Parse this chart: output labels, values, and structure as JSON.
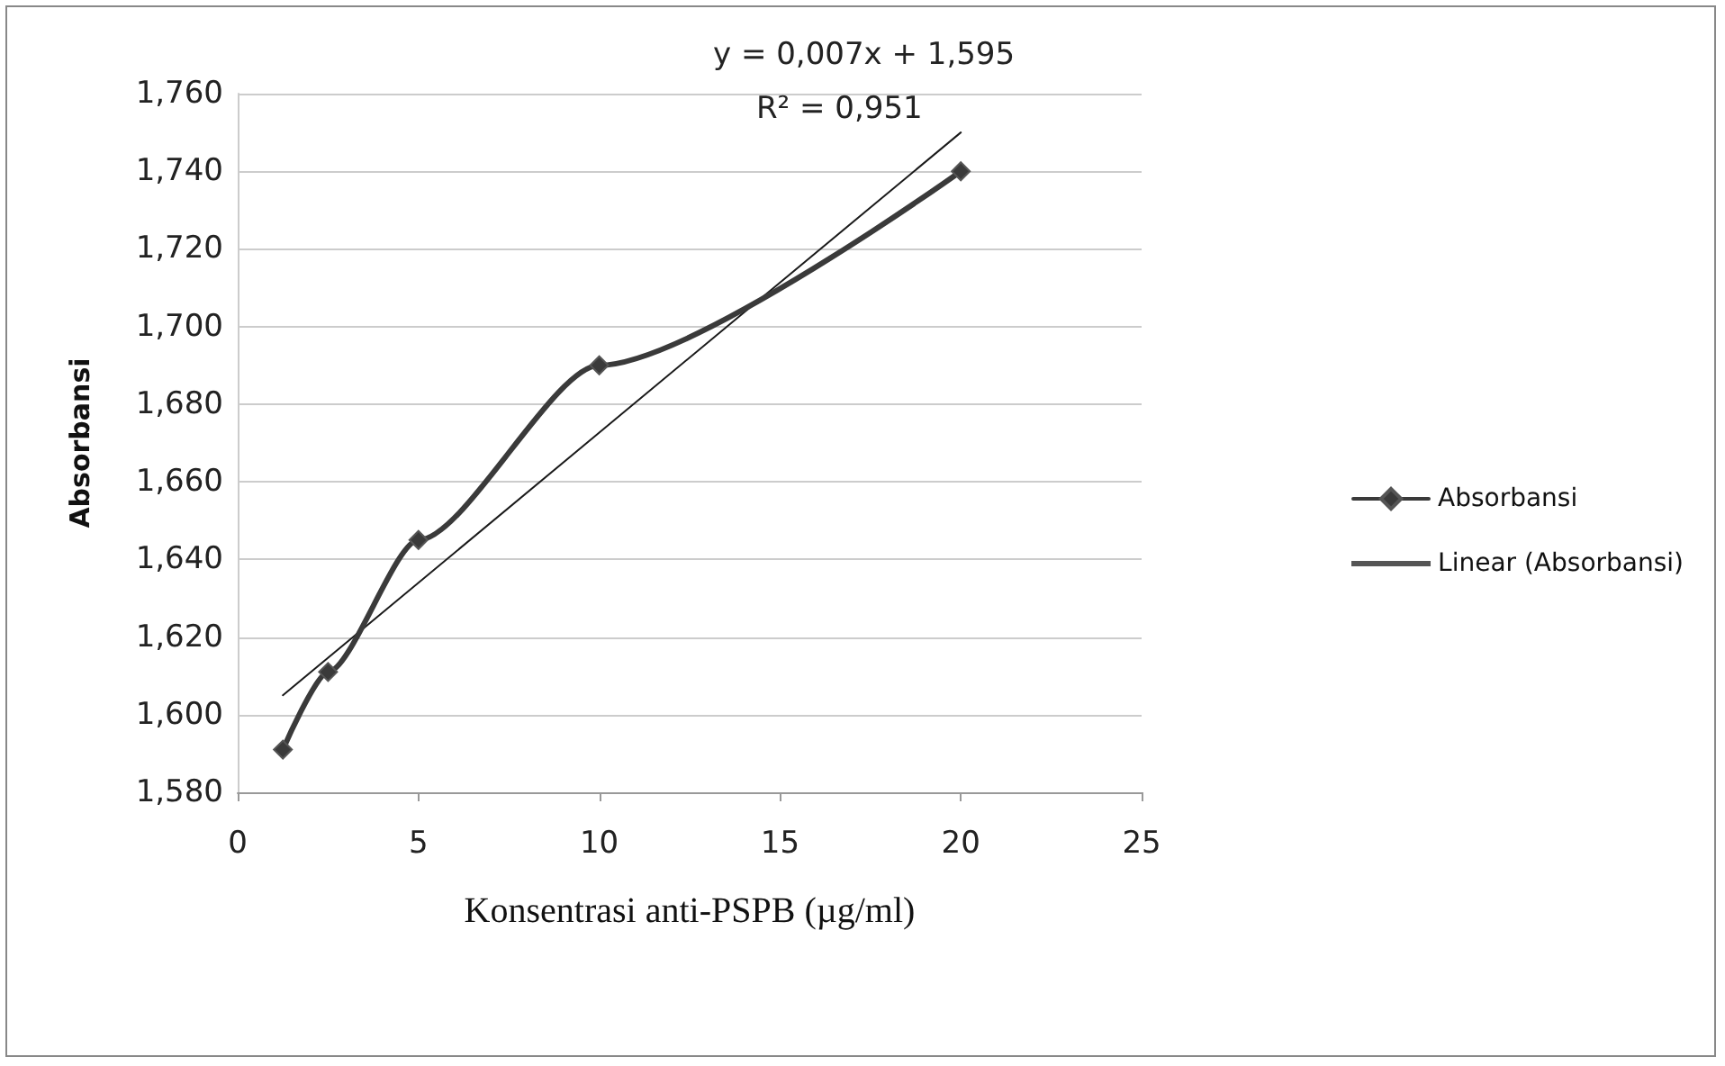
{
  "chart_data": {
    "type": "line",
    "xlabel": "Konsentrasi anti-PSPB (µg/ml)",
    "ylabel": "Absorbansi",
    "series": [
      {
        "name": "Absorbansi",
        "color": "#3a3a3a",
        "x": [
          1.25,
          2.5,
          5,
          10,
          20
        ],
        "values": [
          1.591,
          1.611,
          1.645,
          1.69,
          1.74
        ],
        "marker": "diamond"
      },
      {
        "name": "Linear (Absorbansi)",
        "color": "#1a1a1a",
        "x": [
          1.25,
          20
        ],
        "values": [
          1.605,
          1.75
        ],
        "marker": "none"
      }
    ],
    "xlim": [
      0,
      25
    ],
    "xticks": [
      0,
      5,
      10,
      15,
      20,
      25
    ],
    "ylim": [
      1.58,
      1.76
    ],
    "yticks": [
      {
        "value": 1.58,
        "label": "1,580"
      },
      {
        "value": 1.6,
        "label": "1,600"
      },
      {
        "value": 1.62,
        "label": "1,620"
      },
      {
        "value": 1.64,
        "label": "1,640"
      },
      {
        "value": 1.66,
        "label": "1,660"
      },
      {
        "value": 1.68,
        "label": "1,680"
      },
      {
        "value": 1.7,
        "label": "1,700"
      },
      {
        "value": 1.72,
        "label": "1,720"
      },
      {
        "value": 1.74,
        "label": "1,740"
      },
      {
        "value": 1.76,
        "label": "1,760"
      }
    ],
    "annotations": [
      "y = 0,007x + 1,595",
      "R² = 0,951"
    ],
    "grid": "y",
    "legend": "right"
  }
}
